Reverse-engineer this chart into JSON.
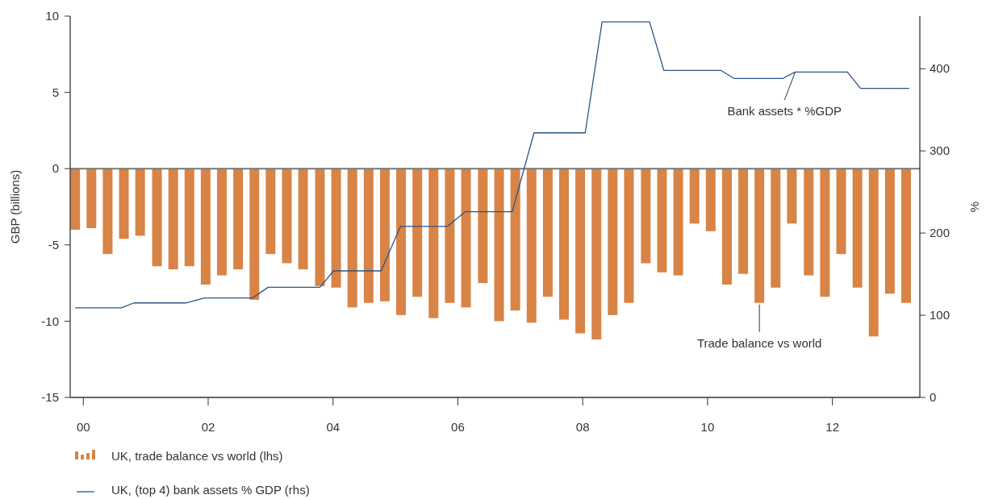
{
  "chart_data": {
    "type": "bar",
    "ylabel": "GBP (billions)",
    "y2label": "%",
    "x": [
      1999.87,
      2000.13,
      2000.39,
      2000.65,
      2000.91,
      2001.18,
      2001.44,
      2001.7,
      2001.96,
      2002.22,
      2002.48,
      2002.74,
      2003.0,
      2003.26,
      2003.52,
      2003.79,
      2004.05,
      2004.31,
      2004.57,
      2004.83,
      2005.09,
      2005.35,
      2005.61,
      2005.87,
      2006.13,
      2006.4,
      2006.66,
      2006.92,
      2007.18,
      2007.44,
      2007.7,
      2007.96,
      2008.22,
      2008.48,
      2008.74,
      2009.01,
      2009.27,
      2009.53,
      2009.79,
      2010.05,
      2010.31,
      2010.57,
      2010.83,
      2011.09,
      2011.35,
      2011.62,
      2011.88,
      2012.14,
      2012.4,
      2012.66,
      2012.92,
      2013.18
    ],
    "series": [
      {
        "name": "UK, trade balance vs world (lhs)",
        "color": "#d88446",
        "values": [
          -4.0,
          -3.9,
          -5.6,
          -4.6,
          -4.4,
          -6.4,
          -6.6,
          -6.4,
          -7.6,
          -7.0,
          -6.6,
          -8.6,
          -5.6,
          -6.2,
          -6.6,
          -7.7,
          -7.8,
          -9.1,
          -8.8,
          -8.7,
          -9.6,
          -8.4,
          -9.8,
          -8.8,
          -9.1,
          -7.5,
          -10.0,
          -9.3,
          -10.1,
          -8.4,
          -9.9,
          -10.8,
          -11.2,
          -9.6,
          -8.8,
          -6.2,
          -6.8,
          -7.0,
          -3.6,
          -4.1,
          -7.6,
          -6.9,
          -8.8,
          -7.8,
          -3.6,
          -7.0,
          -8.4,
          -5.6,
          -7.8,
          -11.0,
          -8.2,
          -8.8
        ]
      },
      {
        "name": "UK, (top 4) bank assets % GDP (rhs)",
        "type": "line",
        "axis": "y2",
        "color": "#2b5487",
        "x": [
          1999.87,
          2000.61,
          2000.81,
          2001.64,
          2001.94,
          2002.71,
          2002.96,
          2003.79,
          2004.01,
          2004.77,
          2005.08,
          2005.83,
          2006.12,
          2006.87,
          2007.22,
          2008.04,
          2008.31,
          2009.07,
          2009.3,
          2010.21,
          2010.43,
          2011.2,
          2011.4,
          2012.24,
          2012.45,
          2013.23
        ],
        "values": [
          109,
          109,
          115,
          115,
          121,
          121,
          134,
          134,
          154,
          154,
          208,
          208,
          226,
          226,
          322,
          322,
          457,
          457,
          398,
          398,
          388,
          388,
          396,
          396,
          376,
          376
        ]
      }
    ],
    "xlim": [
      1999.79,
      2013.4
    ],
    "xticks": [
      {
        "value": 2000,
        "label": "00"
      },
      {
        "value": 2002,
        "label": "02"
      },
      {
        "value": 2004,
        "label": "04"
      },
      {
        "value": 2006,
        "label": "06"
      },
      {
        "value": 2008,
        "label": "08"
      },
      {
        "value": 2010,
        "label": "10"
      },
      {
        "value": 2012,
        "label": "12"
      }
    ],
    "ylim": [
      -15,
      10
    ],
    "yticks": [
      -15,
      -10,
      -5,
      0,
      5,
      10
    ],
    "y2lim": [
      0,
      464
    ],
    "y2ticks": [
      0,
      100,
      200,
      300,
      400
    ],
    "annotations": [
      {
        "text": "Bank assets * %GDP",
        "x": 2011.4,
        "y": 6.4
      },
      {
        "text": "Trade balance vs world",
        "x": 2010.83,
        "y": -8.8
      }
    ],
    "ref_lines": [
      {
        "axis": "y",
        "value": 0,
        "color": "#777777"
      }
    ],
    "legend": "bottom"
  }
}
